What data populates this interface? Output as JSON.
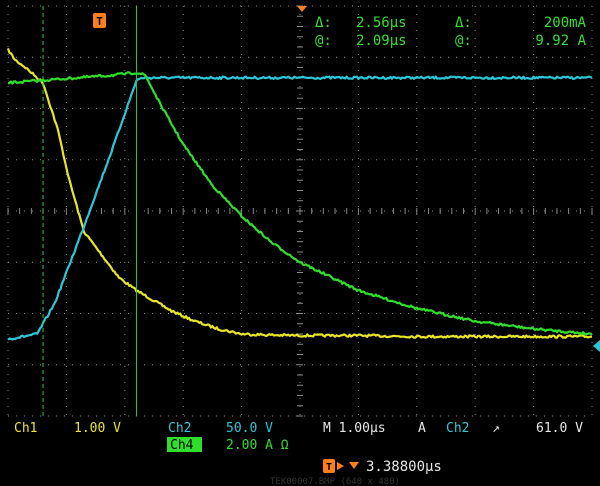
{
  "readout": {
    "delta_label": "Δ:",
    "at_label": "@:",
    "time_delta": "2.56µs",
    "time_at": "2.09µs",
    "amp_delta": "200mA",
    "amp_at": "9.92 A"
  },
  "channels": {
    "ch1_label": "Ch1",
    "ch1_scale": "1.00 V",
    "ch2_label": "Ch2",
    "ch2_scale": "50.0 V",
    "ch4_label": "Ch4",
    "ch4_scale": "2.00 A Ω"
  },
  "timebase": {
    "text": "M 1.00µs",
    "trigger_mode": "A",
    "trigger_source": "Ch2",
    "trigger_slope": "↗",
    "trigger_level": "61.0 V"
  },
  "trigger_position_text": "3.38800µs",
  "trigger_marker_glyph": "T",
  "watermark": "TEK00007.BMP (640 x 480)",
  "colors": {
    "ch1": "#e9e624",
    "ch2": "#2ac7d8",
    "ch4": "#2ee02a",
    "cursor": "#28c83a",
    "grid": "#8a8a8a",
    "trigger": "#ff7f1a",
    "background": "#000000"
  },
  "chart_data": {
    "type": "line",
    "title": "",
    "xlabel": "",
    "ylabel": "",
    "x_unit": "µs",
    "x_divisions": 10,
    "y_divisions": 8,
    "xlim": [
      0,
      10
    ],
    "ylim": [
      -4,
      4
    ],
    "grid": true,
    "cursors_x": [
      0.6,
      2.2
    ],
    "series": [
      {
        "name": "Ch1",
        "color": "#e9e624",
        "x": [
          0,
          0.12,
          0.3,
          0.6,
          0.85,
          1.05,
          1.3,
          1.6,
          1.9,
          2.2,
          2.5,
          2.8,
          3.2,
          3.6,
          4.0,
          4.5,
          5.0,
          5.5,
          6.0,
          7.0,
          8.0,
          9.0,
          10.0
        ],
        "y": [
          3.15,
          2.95,
          2.8,
          2.5,
          1.6,
          0.6,
          -0.4,
          -0.85,
          -1.3,
          -1.55,
          -1.75,
          -1.95,
          -2.15,
          -2.3,
          -2.4,
          -2.42,
          -2.43,
          -2.43,
          -2.43,
          -2.45,
          -2.45,
          -2.45,
          -2.45
        ]
      },
      {
        "name": "Ch2",
        "color": "#2ac7d8",
        "x": [
          0,
          0.5,
          0.8,
          1.3,
          1.8,
          2.2,
          2.3,
          3.0,
          4.0,
          6.0,
          8.0,
          10.0
        ],
        "y": [
          -2.5,
          -2.4,
          -1.8,
          -0.3,
          1.25,
          2.55,
          2.6,
          2.6,
          2.6,
          2.6,
          2.6,
          2.6
        ]
      },
      {
        "name": "Ch4",
        "color": "#2ee02a",
        "x": [
          0,
          0.6,
          1.2,
          1.8,
          2.2,
          2.35,
          2.6,
          3.0,
          3.5,
          4.0,
          4.5,
          5.0,
          6.0,
          7.0,
          8.0,
          9.0,
          10.0
        ],
        "y": [
          2.5,
          2.55,
          2.6,
          2.65,
          2.7,
          2.65,
          2.1,
          1.3,
          0.5,
          -0.1,
          -0.6,
          -1.0,
          -1.55,
          -1.9,
          -2.15,
          -2.3,
          -2.4
        ]
      }
    ]
  }
}
